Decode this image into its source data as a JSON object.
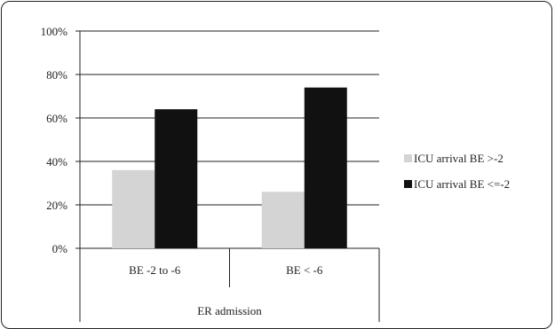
{
  "chart_data": {
    "type": "bar",
    "categories": [
      "BE -2 to -6",
      "BE < -6"
    ],
    "group_label": "ER admission",
    "series": [
      {
        "name": "ICU arrival BE >-2",
        "values": [
          36,
          26
        ],
        "color": "#d4d4d4"
      },
      {
        "name": "ICU arrival BE <=-2",
        "values": [
          64,
          74
        ],
        "color": "#111111"
      }
    ],
    "ylim": [
      0,
      100
    ],
    "yticks": [
      0,
      20,
      40,
      60,
      80,
      100
    ],
    "ytick_labels": [
      "0%",
      "20%",
      "40%",
      "60%",
      "80%",
      "100%"
    ],
    "grid": true,
    "legend_position": "right"
  }
}
